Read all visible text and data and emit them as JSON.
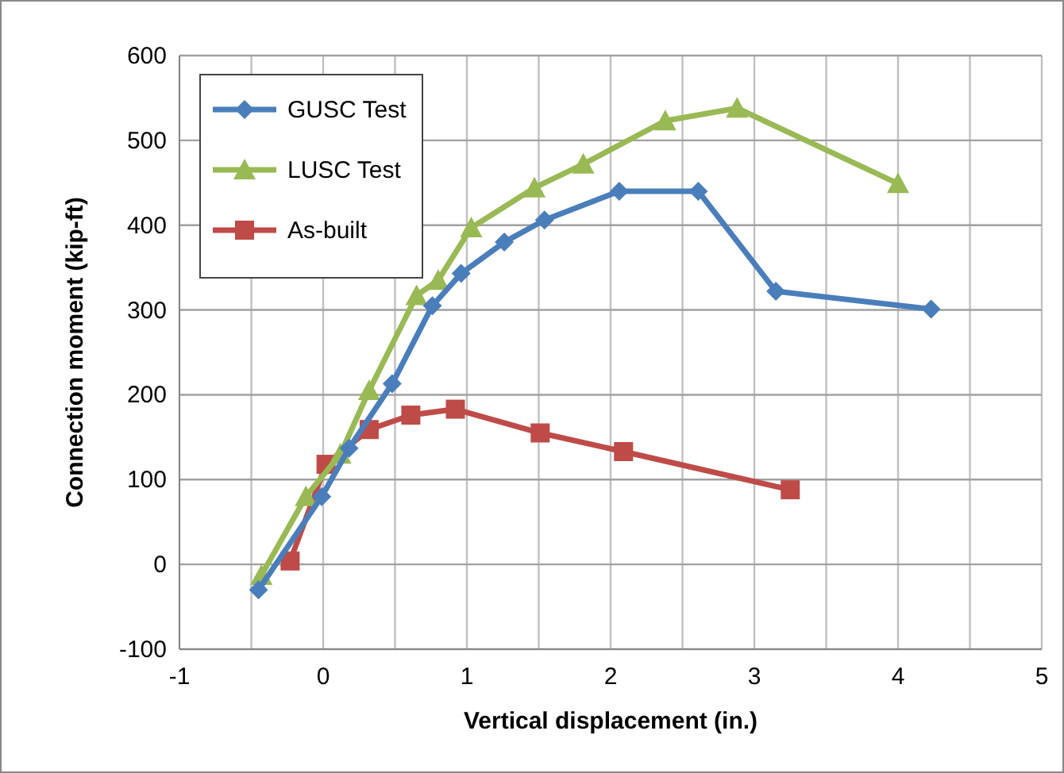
{
  "chart_data": {
    "type": "line",
    "xlabel": "Vertical displacement (in.)",
    "ylabel": "Connection moment (kip-ft)",
    "xlim": [
      -1,
      5
    ],
    "xticks": [
      -1,
      {
        "value": -0.5,
        "label": null
      },
      0,
      {
        "value": 0.5,
        "label": null
      },
      1,
      {
        "value": 1.5,
        "label": null
      },
      2,
      {
        "value": 2.5,
        "label": null
      },
      3,
      {
        "value": 3.5,
        "label": null
      },
      4,
      {
        "value": 4.5,
        "label": null
      },
      5
    ],
    "ylim": [
      -100,
      600
    ],
    "yticks": [
      -100,
      0,
      100,
      200,
      300,
      400,
      500,
      600
    ],
    "grid": true,
    "legend": "top left",
    "line_style": "solid",
    "series": [
      {
        "name": "GUSC Test",
        "color": "#4a7ebb",
        "marker": "diamond",
        "x": [
          -0.45,
          -0.01,
          0.18,
          0.48,
          0.76,
          0.96,
          1.26,
          1.54,
          2.06,
          2.61,
          3.15,
          4.23
        ],
        "values": [
          -30,
          80,
          137,
          213,
          305,
          343,
          380,
          406,
          440,
          440,
          322,
          301
        ]
      },
      {
        "name": "LUSC Test",
        "color": "#98b954",
        "marker": "triangle",
        "x": [
          -0.43,
          -0.12,
          0.12,
          0.32,
          0.65,
          0.8,
          1.03,
          1.47,
          1.81,
          2.38,
          2.88,
          4.0
        ],
        "values": [
          -13,
          80,
          130,
          205,
          317,
          335,
          397,
          444,
          472,
          523,
          538,
          449
        ]
      },
      {
        "name": "As-built",
        "color": "#be4b48",
        "marker": "square",
        "x": [
          -0.23,
          0.02,
          0.32,
          0.61,
          0.92,
          1.51,
          2.09,
          3.25
        ],
        "values": [
          4,
          118,
          159,
          176,
          183,
          155,
          133,
          88
        ]
      }
    ]
  }
}
